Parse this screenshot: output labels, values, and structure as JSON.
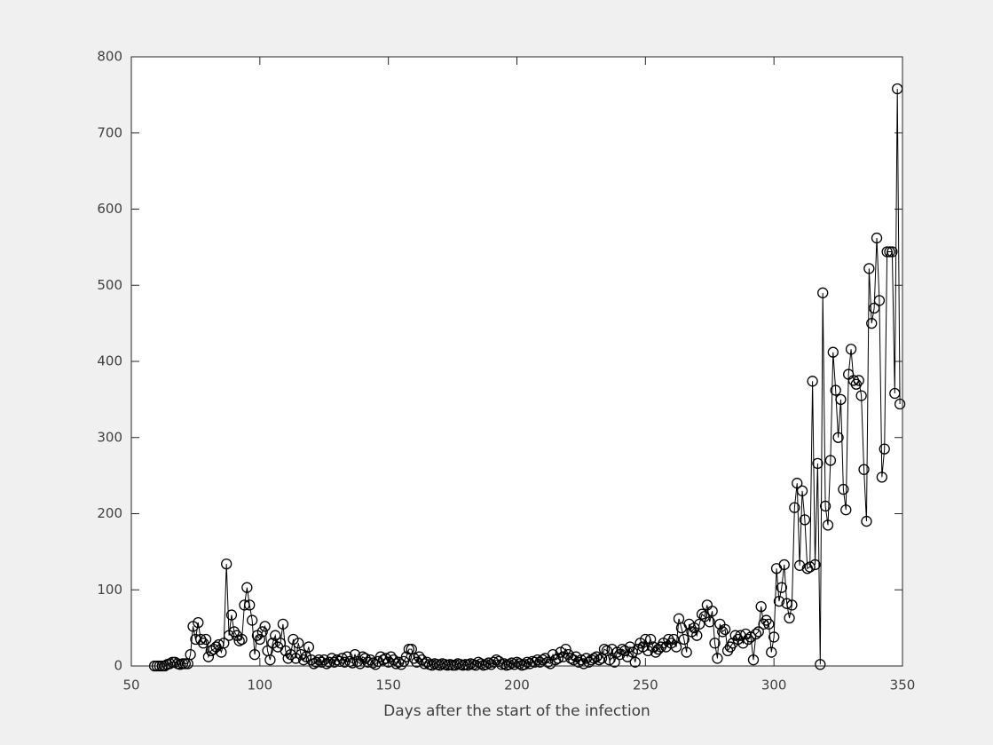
{
  "chart_data": {
    "type": "line",
    "xlabel": "Days after the start of the infection",
    "x": [
      59,
      60,
      61,
      62,
      63,
      64,
      65,
      66,
      67,
      68,
      69,
      70,
      71,
      72,
      73,
      74,
      75,
      76,
      77,
      78,
      79,
      80,
      81,
      82,
      83,
      84,
      85,
      86,
      87,
      88,
      89,
      90,
      91,
      92,
      93,
      94,
      95,
      96,
      97,
      98,
      99,
      100,
      101,
      102,
      103,
      104,
      105,
      106,
      107,
      108,
      109,
      110,
      111,
      112,
      113,
      114,
      115,
      116,
      117,
      118,
      119,
      120,
      121,
      122,
      123,
      124,
      125,
      126,
      127,
      128,
      129,
      130,
      131,
      132,
      133,
      134,
      135,
      136,
      137,
      138,
      139,
      140,
      141,
      142,
      143,
      144,
      145,
      146,
      147,
      148,
      149,
      150,
      151,
      152,
      153,
      154,
      155,
      156,
      157,
      158,
      159,
      160,
      161,
      162,
      163,
      164,
      165,
      166,
      167,
      168,
      169,
      170,
      171,
      172,
      173,
      174,
      175,
      176,
      177,
      178,
      179,
      180,
      181,
      182,
      183,
      184,
      185,
      186,
      187,
      188,
      189,
      190,
      191,
      192,
      193,
      194,
      195,
      196,
      197,
      198,
      199,
      200,
      201,
      202,
      203,
      204,
      205,
      206,
      207,
      208,
      209,
      210,
      211,
      212,
      213,
      214,
      215,
      216,
      217,
      218,
      219,
      220,
      221,
      222,
      223,
      224,
      225,
      226,
      227,
      228,
      229,
      230,
      231,
      232,
      233,
      234,
      235,
      236,
      237,
      238,
      239,
      240,
      241,
      242,
      243,
      244,
      245,
      246,
      247,
      248,
      249,
      250,
      251,
      252,
      253,
      254,
      255,
      256,
      257,
      258,
      259,
      260,
      261,
      262,
      263,
      264,
      265,
      266,
      267,
      268,
      269,
      270,
      271,
      272,
      273,
      274,
      275,
      276,
      277,
      278,
      279,
      280,
      281,
      282,
      283,
      284,
      285,
      286,
      287,
      288,
      289,
      290,
      291,
      292,
      293,
      294,
      295,
      296,
      297,
      298,
      299,
      300,
      301,
      302,
      303,
      304,
      305,
      306,
      307,
      308,
      309,
      310,
      311,
      312,
      313,
      314,
      315,
      316,
      317,
      318,
      319,
      320,
      321,
      322,
      323,
      324,
      325,
      326,
      327,
      328,
      329,
      330,
      331,
      332,
      333,
      334,
      335,
      336,
      337,
      338,
      339,
      340,
      341,
      342,
      343,
      344,
      345,
      346,
      347,
      348,
      349
    ],
    "values": [
      0,
      0,
      0,
      0,
      0,
      2,
      3,
      5,
      5,
      3,
      2,
      3,
      3,
      3,
      15,
      52,
      35,
      57,
      35,
      30,
      35,
      12,
      20,
      22,
      25,
      28,
      18,
      30,
      134,
      40,
      67,
      45,
      40,
      33,
      35,
      80,
      103,
      80,
      60,
      15,
      40,
      35,
      45,
      52,
      20,
      8,
      30,
      40,
      25,
      30,
      55,
      20,
      10,
      15,
      35,
      10,
      30,
      15,
      8,
      12,
      25,
      8,
      3,
      5,
      8,
      5,
      8,
      3,
      5,
      10,
      5,
      8,
      6,
      10,
      5,
      12,
      6,
      4,
      15,
      6,
      3,
      12,
      10,
      5,
      8,
      4,
      2,
      6,
      12,
      8,
      10,
      5,
      12,
      8,
      3,
      5,
      2,
      6,
      12,
      22,
      22,
      10,
      5,
      12,
      8,
      3,
      5,
      2,
      1,
      3,
      2,
      1,
      3,
      2,
      1,
      2,
      1,
      1,
      3,
      2,
      1,
      2,
      1,
      3,
      2,
      1,
      5,
      3,
      1,
      2,
      4,
      2,
      5,
      8,
      6,
      2,
      3,
      1,
      2,
      4,
      2,
      5,
      3,
      1,
      2,
      5,
      3,
      6,
      5,
      8,
      5,
      8,
      10,
      5,
      3,
      15,
      8,
      10,
      18,
      12,
      22,
      15,
      10,
      8,
      12,
      5,
      8,
      3,
      10,
      5,
      8,
      10,
      12,
      8,
      10,
      22,
      20,
      8,
      22,
      5,
      18,
      15,
      22,
      20,
      12,
      25,
      18,
      5,
      22,
      30,
      25,
      35,
      20,
      35,
      25,
      18,
      22,
      25,
      30,
      25,
      35,
      30,
      35,
      25,
      62,
      50,
      35,
      18,
      55,
      45,
      50,
      40,
      55,
      68,
      65,
      80,
      58,
      72,
      30,
      10,
      55,
      45,
      48,
      20,
      25,
      30,
      40,
      35,
      40,
      30,
      42,
      35,
      38,
      8,
      42,
      45,
      78,
      55,
      60,
      55,
      18,
      38,
      128,
      85,
      103,
      133,
      82,
      63,
      80,
      208,
      240,
      132,
      230,
      192,
      128,
      130,
      374,
      133,
      266,
      2,
      490,
      210,
      185,
      270,
      412,
      362,
      300,
      350,
      232,
      205,
      383,
      416,
      375,
      370,
      375,
      355,
      258,
      190,
      522,
      450,
      470,
      562,
      480,
      248,
      285,
      544,
      544,
      544,
      358,
      758,
      344
    ],
    "color": "#000000",
    "marker": "o",
    "xlim": [
      50,
      350
    ],
    "xticks": [
      50,
      100,
      150,
      200,
      250,
      300,
      350
    ],
    "ylim": [
      0,
      800
    ],
    "yticks": [
      0,
      100,
      200,
      300,
      400,
      500,
      600,
      700,
      800
    ],
    "box": true
  }
}
